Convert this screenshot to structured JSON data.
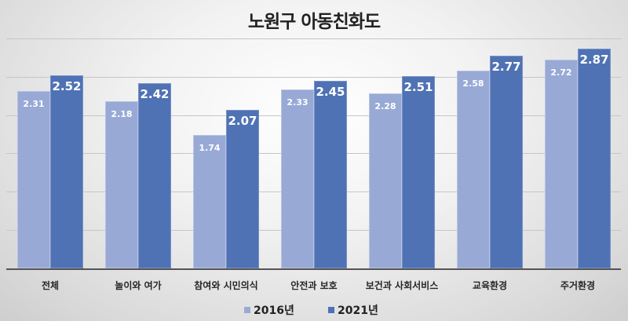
{
  "chart_data": {
    "type": "bar",
    "title": "노원구 아동친화도",
    "xlabel": "",
    "ylabel": "",
    "ylim": [
      0,
      3.0
    ],
    "ytick_step": 0.5,
    "grid": true,
    "axis_tick_labels_visible": false,
    "legend_position": "bottom",
    "categories": [
      "전체",
      "놀이와 여가",
      "참여와 시민의식",
      "안전과 보호",
      "보건과 사회서비스",
      "교육환경",
      "주거환경"
    ],
    "series": [
      {
        "name": "2016년",
        "color": "#98a9d6",
        "values": [
          2.31,
          2.18,
          1.74,
          2.33,
          2.28,
          2.58,
          2.72
        ]
      },
      {
        "name": "2021년",
        "color": "#4f72b5",
        "values": [
          2.52,
          2.42,
          2.07,
          2.45,
          2.51,
          2.77,
          2.87
        ]
      }
    ]
  },
  "labels": {
    "title": "노원구 아동친화도",
    "s2016": [
      "2.31",
      "2.18",
      "1.74",
      "2.33",
      "2.28",
      "2.58",
      "2.72"
    ],
    "s2021": [
      "2.52",
      "2.42",
      "2.07",
      "2.45",
      "2.51",
      "2.77",
      "2.87"
    ],
    "categories": [
      "전체",
      "놀이와 여가",
      "참여와 시민의식",
      "안전과 보호",
      "보건과 사회서비스",
      "교육환경",
      "주거환경"
    ],
    "legend": [
      "2016년",
      "2021년"
    ]
  }
}
